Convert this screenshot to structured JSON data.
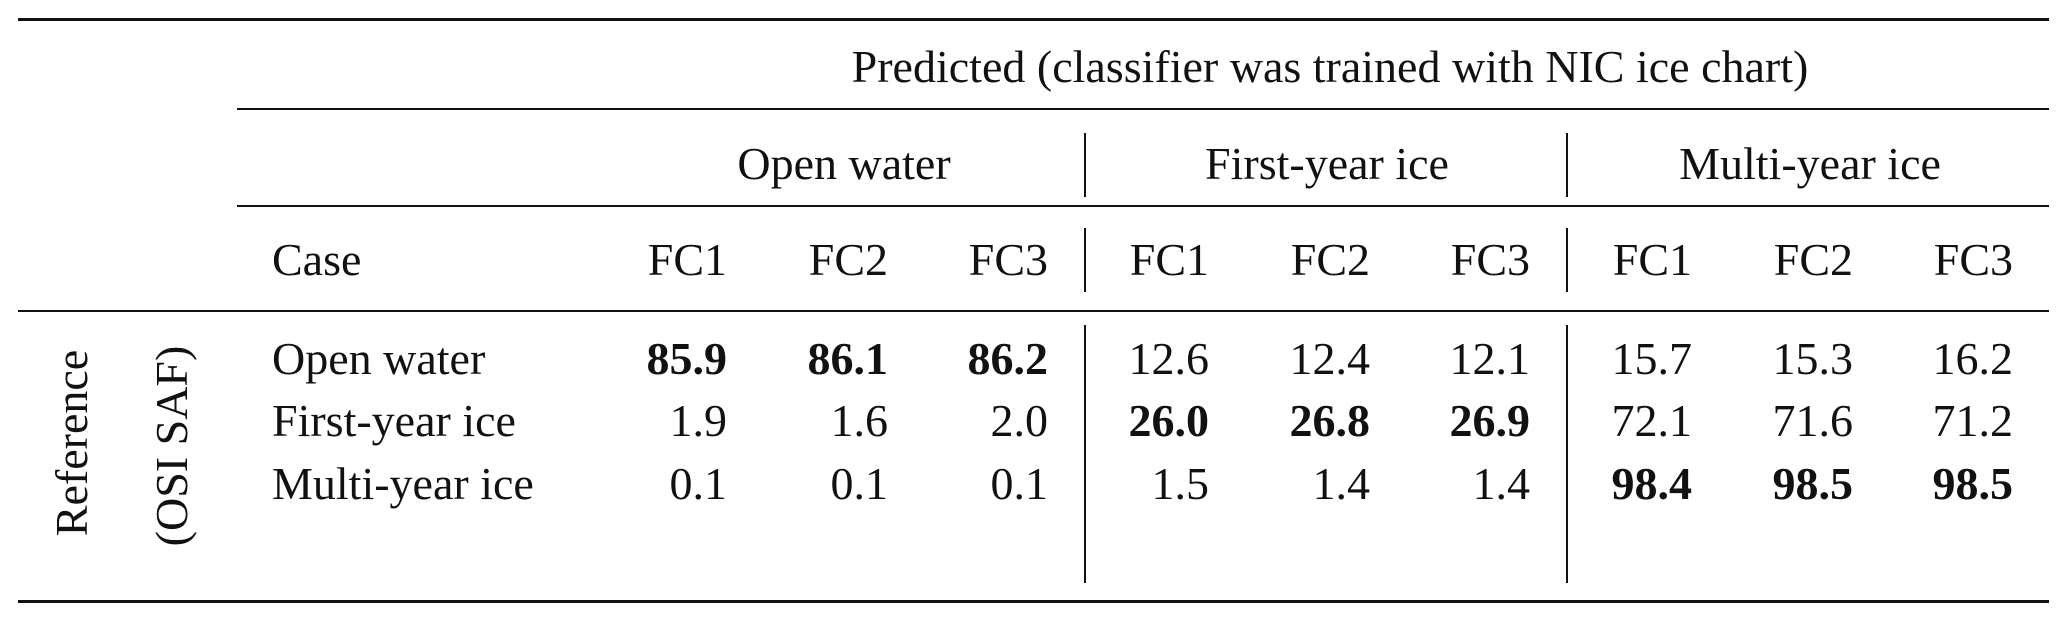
{
  "table": {
    "predicted_header": "Predicted (classifier was trained with NIC ice chart)",
    "groups": [
      {
        "label": "Open water"
      },
      {
        "label": "First-year ice"
      },
      {
        "label": "Multi-year ice"
      }
    ],
    "case_label": "Case",
    "subcolumns": [
      "FC1",
      "FC2",
      "FC3",
      "FC1",
      "FC2",
      "FC3",
      "FC1",
      "FC2",
      "FC3"
    ],
    "reference_label": "Reference",
    "reference_sub_label": "(OSI SAF)",
    "rows": [
      {
        "label": "Open water",
        "values": [
          "85.9",
          "86.1",
          "86.2",
          "12.6",
          "12.4",
          "12.1",
          "15.7",
          "15.3",
          "16.2"
        ],
        "bold": [
          true,
          true,
          true,
          false,
          false,
          false,
          false,
          false,
          false
        ]
      },
      {
        "label": "First-year ice",
        "values": [
          "1.9",
          "1.6",
          "2.0",
          "26.0",
          "26.8",
          "26.9",
          "72.1",
          "71.6",
          "71.2"
        ],
        "bold": [
          false,
          false,
          false,
          true,
          true,
          true,
          false,
          false,
          false
        ]
      },
      {
        "label": "Multi-year ice",
        "values": [
          "0.1",
          "0.1",
          "0.1",
          "1.5",
          "1.4",
          "1.4",
          "98.4",
          "98.5",
          "98.5"
        ],
        "bold": [
          false,
          false,
          false,
          false,
          false,
          false,
          true,
          true,
          true
        ]
      }
    ]
  }
}
